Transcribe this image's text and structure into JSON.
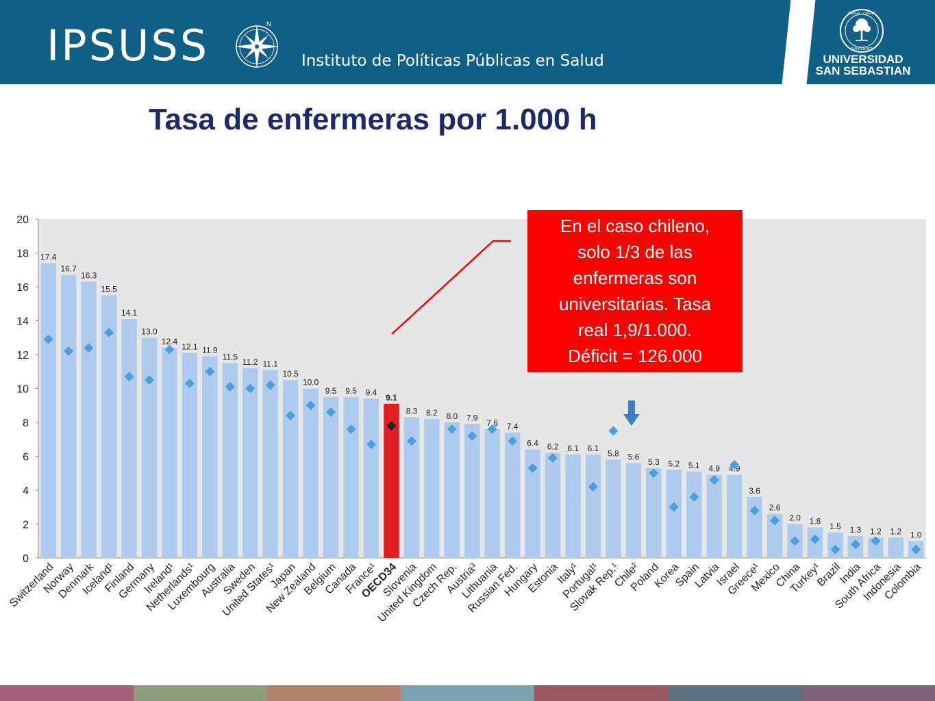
{
  "header": {
    "brand": "IPSUSS",
    "compass_letter": "N",
    "institute": "Instituto de Políticas Públicas en Salud",
    "university_line1": "UNIVERSIDAD",
    "university_line2": "SAN SEBASTIAN",
    "seal_top_words": "CREER · CREAR",
    "seal_bottom_word": "EMPRENDER"
  },
  "slide": {
    "title": "Tasa de enfermeras por 1.000 h"
  },
  "callout": {
    "lines": [
      "En el caso chileno,",
      "solo 1/3 de las",
      "enfermeras son",
      "universitarias. Tasa",
      "real 1,9/1.000.",
      "Déficit = 126.000"
    ]
  },
  "colors": {
    "header_bg": "#0f5f86",
    "title": "#1c2a66",
    "bar": "#aecbee",
    "bar_highlight": "#e31e24",
    "marker": "#4a9fdc",
    "marker_highlight": "#222222",
    "plot_bg": "#e6e6e6",
    "callout_bg": "#ff0000",
    "arrow": "#3a7fc4",
    "footer": [
      "#a5617a",
      "#8f9c7e",
      "#b4826c",
      "#7ba2ae",
      "#9b5660",
      "#5c6f81",
      "#7d6378"
    ]
  },
  "chart_data": {
    "type": "bar",
    "ylim": [
      0,
      20
    ],
    "yticks": [
      0,
      2,
      4,
      6,
      8,
      10,
      12,
      14,
      16,
      18,
      20
    ],
    "highlight": "OECD34",
    "arrow_marks": "Chile²",
    "categories": [
      "Switzerland",
      "Norway",
      "Denmark",
      "Iceland¹",
      "Finland",
      "Germany",
      "Ireland¹",
      "Netherlands¹",
      "Luxembourg",
      "Australia",
      "Sweden",
      "United States¹",
      "Japan",
      "New Zealand",
      "Belgium",
      "Canada",
      "France¹",
      "OECD34",
      "Slovenia",
      "United Kingdom",
      "Czech Rep.",
      "Austria³",
      "Lithuania",
      "Russian Fed.",
      "Hungary",
      "Estonia",
      "Italy¹",
      "Portugal¹",
      "Slovak Rep.¹",
      "Chile²",
      "Poland",
      "Korea",
      "Spain",
      "Latvia",
      "Israel",
      "Greece¹",
      "Mexico",
      "China",
      "Turkey¹",
      "Brazil",
      "India",
      "South Africa",
      "Indonesia",
      "Colombia"
    ],
    "series": [
      {
        "values": [
          17.4,
          16.7,
          16.3,
          15.5,
          14.1,
          13.0,
          12.4,
          12.1,
          11.9,
          11.5,
          11.2,
          11.1,
          10.5,
          10.0,
          9.5,
          9.5,
          9.4,
          9.1,
          8.3,
          8.2,
          8.0,
          7.9,
          7.6,
          7.4,
          6.4,
          6.2,
          6.1,
          6.1,
          5.8,
          5.6,
          5.3,
          5.2,
          5.1,
          4.9,
          4.9,
          3.6,
          2.6,
          2.0,
          1.8,
          1.5,
          1.3,
          1.2,
          1.2,
          1.0
        ],
        "value_labels": [
          "17.4",
          "16.7",
          "16.3",
          "15.5",
          "14.1",
          "13.0",
          "12.4",
          "12.1",
          "11.9",
          "11.5",
          "11.2",
          "11.1",
          "10.5",
          "10.0",
          "9.5",
          "9.5",
          "9.4",
          "9.1",
          "8.3",
          "8.2",
          "8.0",
          "7.9",
          "7.6",
          "7.4",
          "6.4",
          "6.2",
          "6.1",
          "6.1",
          "5.8",
          "5.6",
          "5.3",
          "5.2",
          "5.1",
          "4.9",
          "4.9",
          "3.6",
          "2.6",
          "2.0",
          "1.8",
          "1.5",
          "1.3",
          "1.2",
          "1.2",
          "1.0"
        ]
      },
      {
        "values": [
          12.9,
          12.2,
          12.4,
          13.3,
          10.7,
          10.5,
          12.3,
          10.3,
          11.0,
          10.1,
          10.0,
          10.2,
          8.4,
          9.0,
          8.6,
          7.6,
          6.7,
          7.8,
          6.9,
          null,
          7.6,
          7.2,
          7.6,
          6.9,
          5.3,
          5.9,
          null,
          4.2,
          7.5,
          null,
          5.0,
          3.0,
          3.6,
          4.6,
          5.5,
          2.8,
          2.2,
          1.0,
          1.1,
          0.5,
          0.8,
          1.0,
          null,
          0.5
        ]
      }
    ]
  }
}
